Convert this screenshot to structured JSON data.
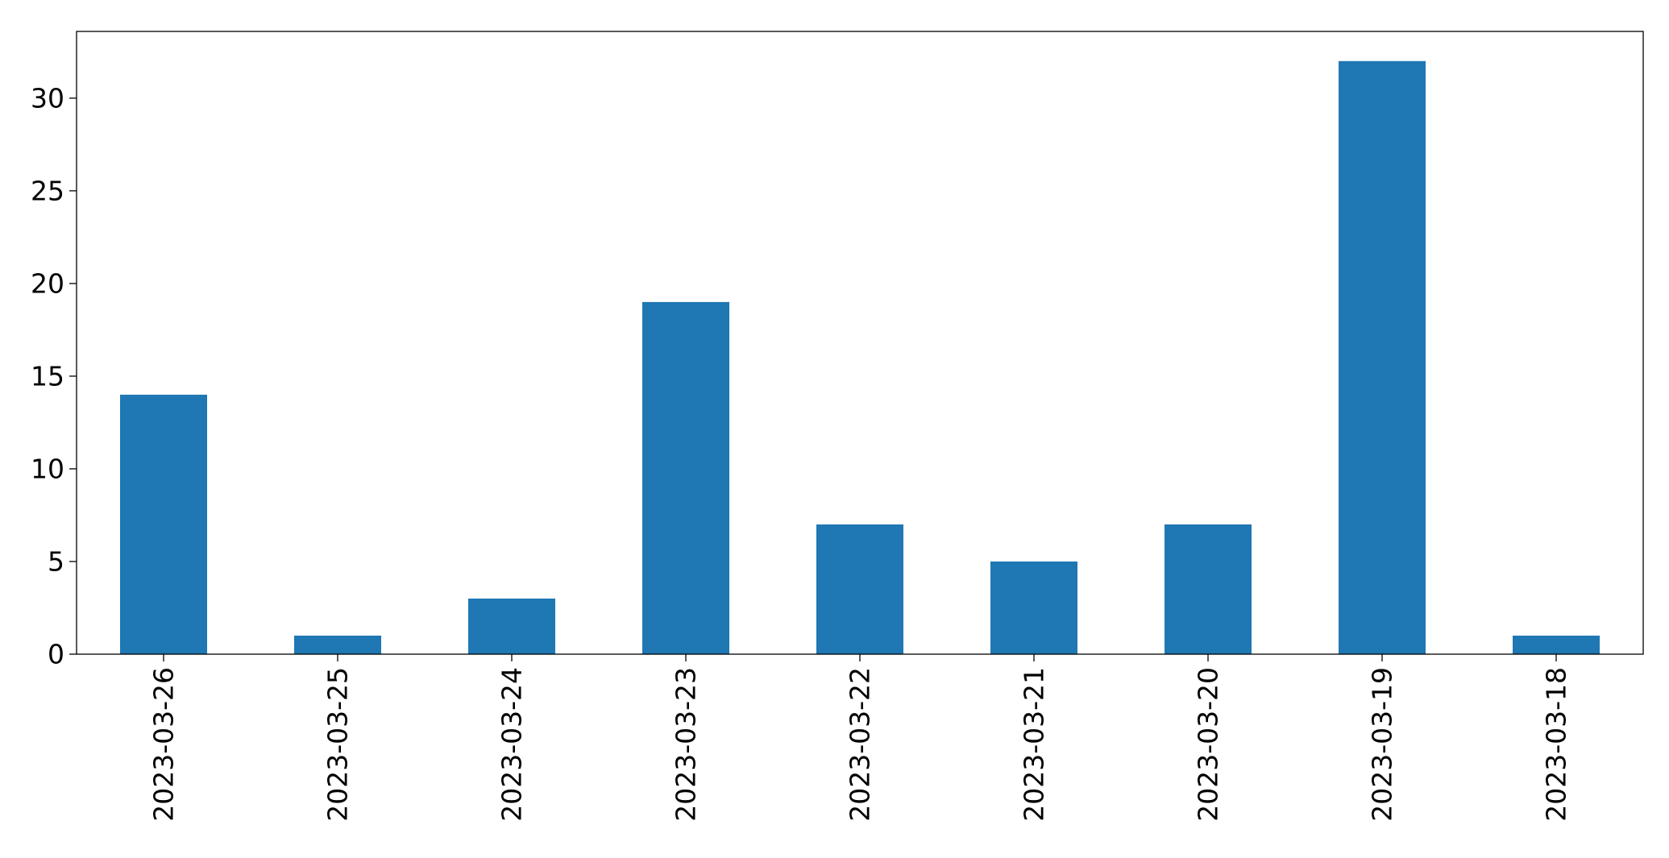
{
  "chart_data": {
    "type": "bar",
    "title": "",
    "xlabel": "",
    "ylabel": "",
    "categories": [
      "2023-03-26",
      "2023-03-25",
      "2023-03-24",
      "2023-03-23",
      "2023-03-22",
      "2023-03-21",
      "2023-03-20",
      "2023-03-19",
      "2023-03-18"
    ],
    "values": [
      14,
      1,
      3,
      19,
      7,
      5,
      7,
      32,
      1
    ],
    "ylim": [
      0,
      33.6
    ],
    "yticks": [
      0,
      5,
      10,
      15,
      20,
      25,
      30
    ],
    "bar_color": "#1f77b4",
    "grid": false,
    "legend": false
  }
}
